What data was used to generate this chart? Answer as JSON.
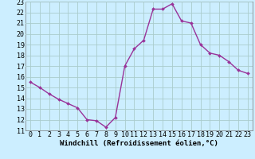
{
  "x": [
    0,
    1,
    2,
    3,
    4,
    5,
    6,
    7,
    8,
    9,
    10,
    11,
    12,
    13,
    14,
    15,
    16,
    17,
    18,
    19,
    20,
    21,
    22,
    23
  ],
  "y": [
    15.5,
    15.0,
    14.4,
    13.9,
    13.5,
    13.1,
    12.0,
    11.9,
    11.3,
    12.2,
    17.0,
    18.6,
    19.4,
    22.3,
    22.3,
    22.8,
    21.2,
    21.0,
    19.0,
    18.2,
    18.0,
    17.4,
    16.6,
    16.3
  ],
  "line_color": "#993399",
  "marker": "D",
  "marker_size": 2.0,
  "bg_color": "#cceeff",
  "grid_color": "#aacccc",
  "xlabel": "Windchill (Refroidissement éolien,°C)",
  "xlim": [
    -0.5,
    23.5
  ],
  "ylim": [
    11,
    23
  ],
  "yticks": [
    11,
    12,
    13,
    14,
    15,
    16,
    17,
    18,
    19,
    20,
    21,
    22,
    23
  ],
  "xticks": [
    0,
    1,
    2,
    3,
    4,
    5,
    6,
    7,
    8,
    9,
    10,
    11,
    12,
    13,
    14,
    15,
    16,
    17,
    18,
    19,
    20,
    21,
    22,
    23
  ],
  "xlabel_fontsize": 6.5,
  "tick_fontsize": 6.0,
  "line_width": 1.0
}
